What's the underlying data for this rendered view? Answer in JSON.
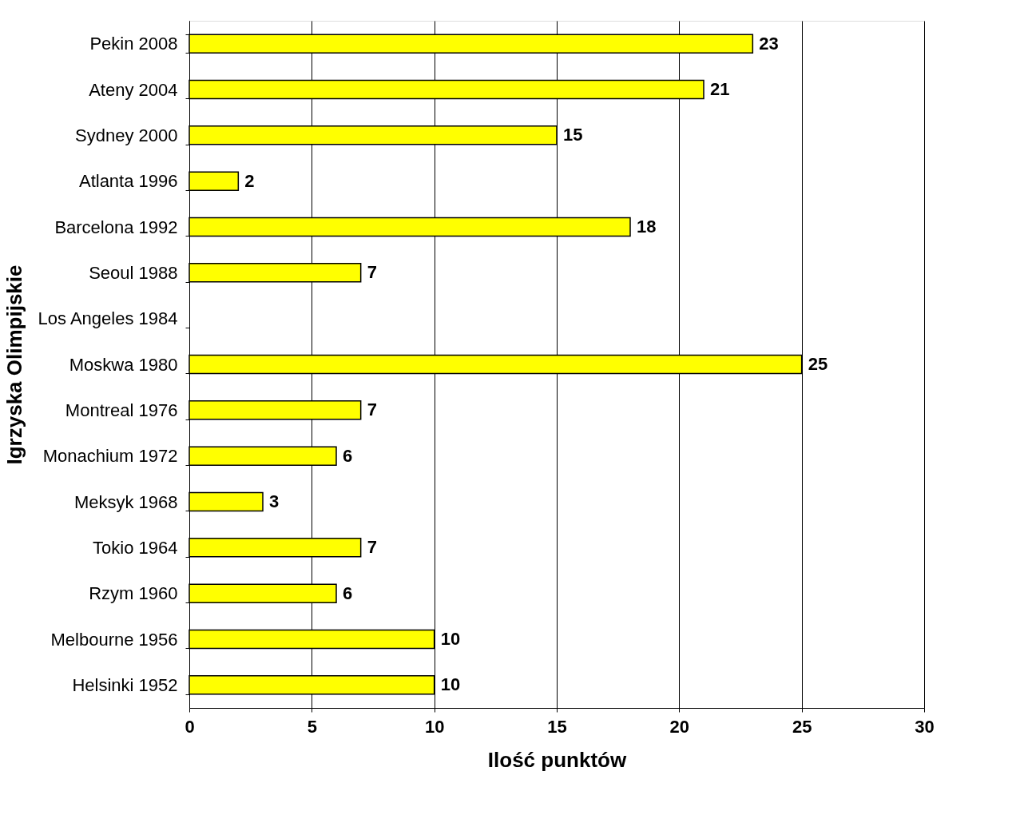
{
  "chart_data": {
    "type": "bar",
    "orientation": "horizontal",
    "xlabel": "Ilość punktów",
    "ylabel": "Igrzyska Olimpijskie",
    "categories": [
      "Pekin 2008",
      "Ateny 2004",
      "Sydney 2000",
      "Atlanta 1996",
      "Barcelona 1992",
      "Seoul 1988",
      "Los Angeles 1984",
      "Moskwa 1980",
      "Montreal 1976",
      "Monachium 1972",
      "Meksyk 1968",
      "Tokio 1964",
      "Rzym 1960",
      "Melbourne 1956",
      "Helsinki 1952"
    ],
    "values": [
      23,
      21,
      15,
      2,
      18,
      7,
      null,
      25,
      7,
      6,
      3,
      7,
      6,
      10,
      10
    ],
    "color": "#ffff00",
    "xlim": [
      0,
      30
    ],
    "xticks": [
      0,
      5,
      10,
      15,
      20,
      25,
      30
    ],
    "grid": "x",
    "data_labels": true
  }
}
